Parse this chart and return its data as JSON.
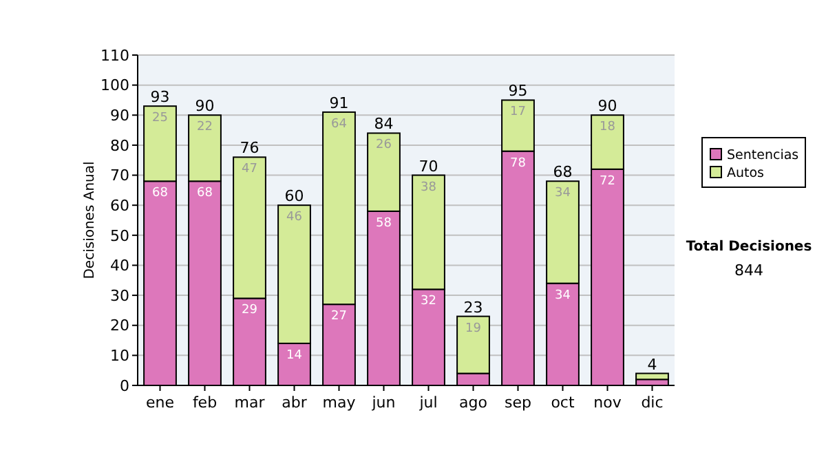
{
  "chart_data": {
    "type": "bar",
    "stacked": true,
    "ylabel": "Decisiones Anual",
    "categories": [
      "ene",
      "feb",
      "mar",
      "abr",
      "may",
      "jun",
      "jul",
      "ago",
      "sep",
      "oct",
      "nov",
      "dic"
    ],
    "series": [
      {
        "name": "Sentencias",
        "color": "#dd77bb",
        "values": [
          68,
          68,
          29,
          14,
          27,
          58,
          32,
          4,
          78,
          34,
          72,
          2
        ],
        "value_labels": [
          "68",
          "68",
          "29",
          "14",
          "27",
          "58",
          "32",
          null,
          "78",
          "34",
          "72",
          null
        ]
      },
      {
        "name": "Autos",
        "color": "#d4eb98",
        "values": [
          25,
          22,
          47,
          46,
          64,
          26,
          38,
          19,
          17,
          34,
          18,
          2
        ],
        "value_labels": [
          "25",
          "22",
          "47",
          "46",
          "64",
          "26",
          "38",
          "19",
          "17",
          "34",
          "18",
          null
        ]
      }
    ],
    "totals": [
      "93",
      "90",
      "76",
      "60",
      "91",
      "84",
      "70",
      "23",
      "95",
      "68",
      "90",
      "4"
    ],
    "ylim": [
      0,
      110
    ],
    "yticks": [
      0,
      10,
      20,
      30,
      40,
      50,
      60,
      70,
      80,
      90,
      100,
      110
    ],
    "grid": "y",
    "legend": "right",
    "annotations": [
      "Total Decisiones",
      "844"
    ]
  }
}
